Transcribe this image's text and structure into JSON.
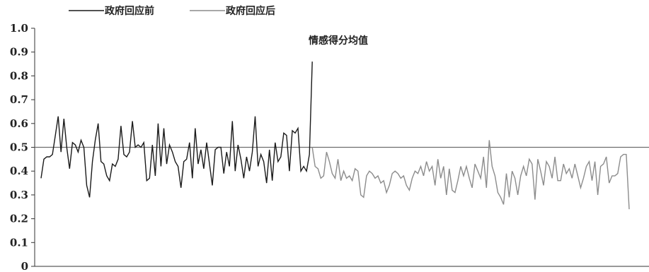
{
  "chart_data": {
    "type": "line",
    "title": "情感得分均值",
    "xlabel": "",
    "ylabel": "",
    "ylim": [
      0,
      1.0
    ],
    "yticks": [
      "0",
      "0.1",
      "0.2",
      "0.3",
      "0.4",
      "0.5",
      "0.6",
      "0.7",
      "0.8",
      "0.9",
      "1.0"
    ],
    "reference_line": 0.5,
    "grid": false,
    "legend_position": "top-left",
    "series": [
      {
        "name": "政府回应前",
        "color": "#1a1a1a",
        "values": [
          0.37,
          0.45,
          0.46,
          0.46,
          0.47,
          0.55,
          0.63,
          0.48,
          0.62,
          0.5,
          0.41,
          0.52,
          0.51,
          0.48,
          0.53,
          0.5,
          0.34,
          0.29,
          0.44,
          0.53,
          0.6,
          0.44,
          0.43,
          0.38,
          0.36,
          0.43,
          0.42,
          0.45,
          0.59,
          0.47,
          0.46,
          0.48,
          0.61,
          0.5,
          0.51,
          0.5,
          0.52,
          0.36,
          0.37,
          0.51,
          0.38,
          0.6,
          0.42,
          0.58,
          0.43,
          0.51,
          0.48,
          0.44,
          0.42,
          0.33,
          0.44,
          0.45,
          0.52,
          0.37,
          0.58,
          0.43,
          0.49,
          0.41,
          0.52,
          0.43,
          0.34,
          0.49,
          0.5,
          0.5,
          0.39,
          0.48,
          0.42,
          0.61,
          0.4,
          0.51,
          0.45,
          0.37,
          0.46,
          0.4,
          0.48,
          0.63,
          0.42,
          0.47,
          0.44,
          0.35,
          0.49,
          0.36,
          0.52,
          0.44,
          0.46,
          0.56,
          0.55,
          0.4,
          0.57,
          0.56,
          0.58,
          0.4,
          0.42,
          0.4,
          0.47,
          0.86
        ]
      },
      {
        "name": "政府回应后",
        "color": "#8c8c8c",
        "values": [
          0.5,
          0.42,
          0.41,
          0.37,
          0.38,
          0.48,
          0.44,
          0.39,
          0.37,
          0.45,
          0.36,
          0.4,
          0.37,
          0.38,
          0.36,
          0.41,
          0.4,
          0.3,
          0.29,
          0.38,
          0.4,
          0.39,
          0.37,
          0.38,
          0.35,
          0.36,
          0.31,
          0.34,
          0.39,
          0.4,
          0.39,
          0.37,
          0.38,
          0.34,
          0.32,
          0.37,
          0.4,
          0.39,
          0.42,
          0.38,
          0.44,
          0.4,
          0.42,
          0.34,
          0.45,
          0.37,
          0.42,
          0.3,
          0.41,
          0.32,
          0.31,
          0.36,
          0.42,
          0.38,
          0.42,
          0.37,
          0.33,
          0.43,
          0.4,
          0.37,
          0.46,
          0.33,
          0.53,
          0.42,
          0.38,
          0.31,
          0.29,
          0.26,
          0.39,
          0.29,
          0.4,
          0.37,
          0.3,
          0.38,
          0.42,
          0.38,
          0.45,
          0.43,
          0.28,
          0.45,
          0.4,
          0.34,
          0.44,
          0.42,
          0.37,
          0.46,
          0.36,
          0.36,
          0.43,
          0.39,
          0.41,
          0.37,
          0.43,
          0.38,
          0.33,
          0.37,
          0.42,
          0.44,
          0.36,
          0.44,
          0.3,
          0.42,
          0.43,
          0.46,
          0.35,
          0.38,
          0.38,
          0.39,
          0.46,
          0.47,
          0.47,
          0.24
        ]
      }
    ]
  }
}
